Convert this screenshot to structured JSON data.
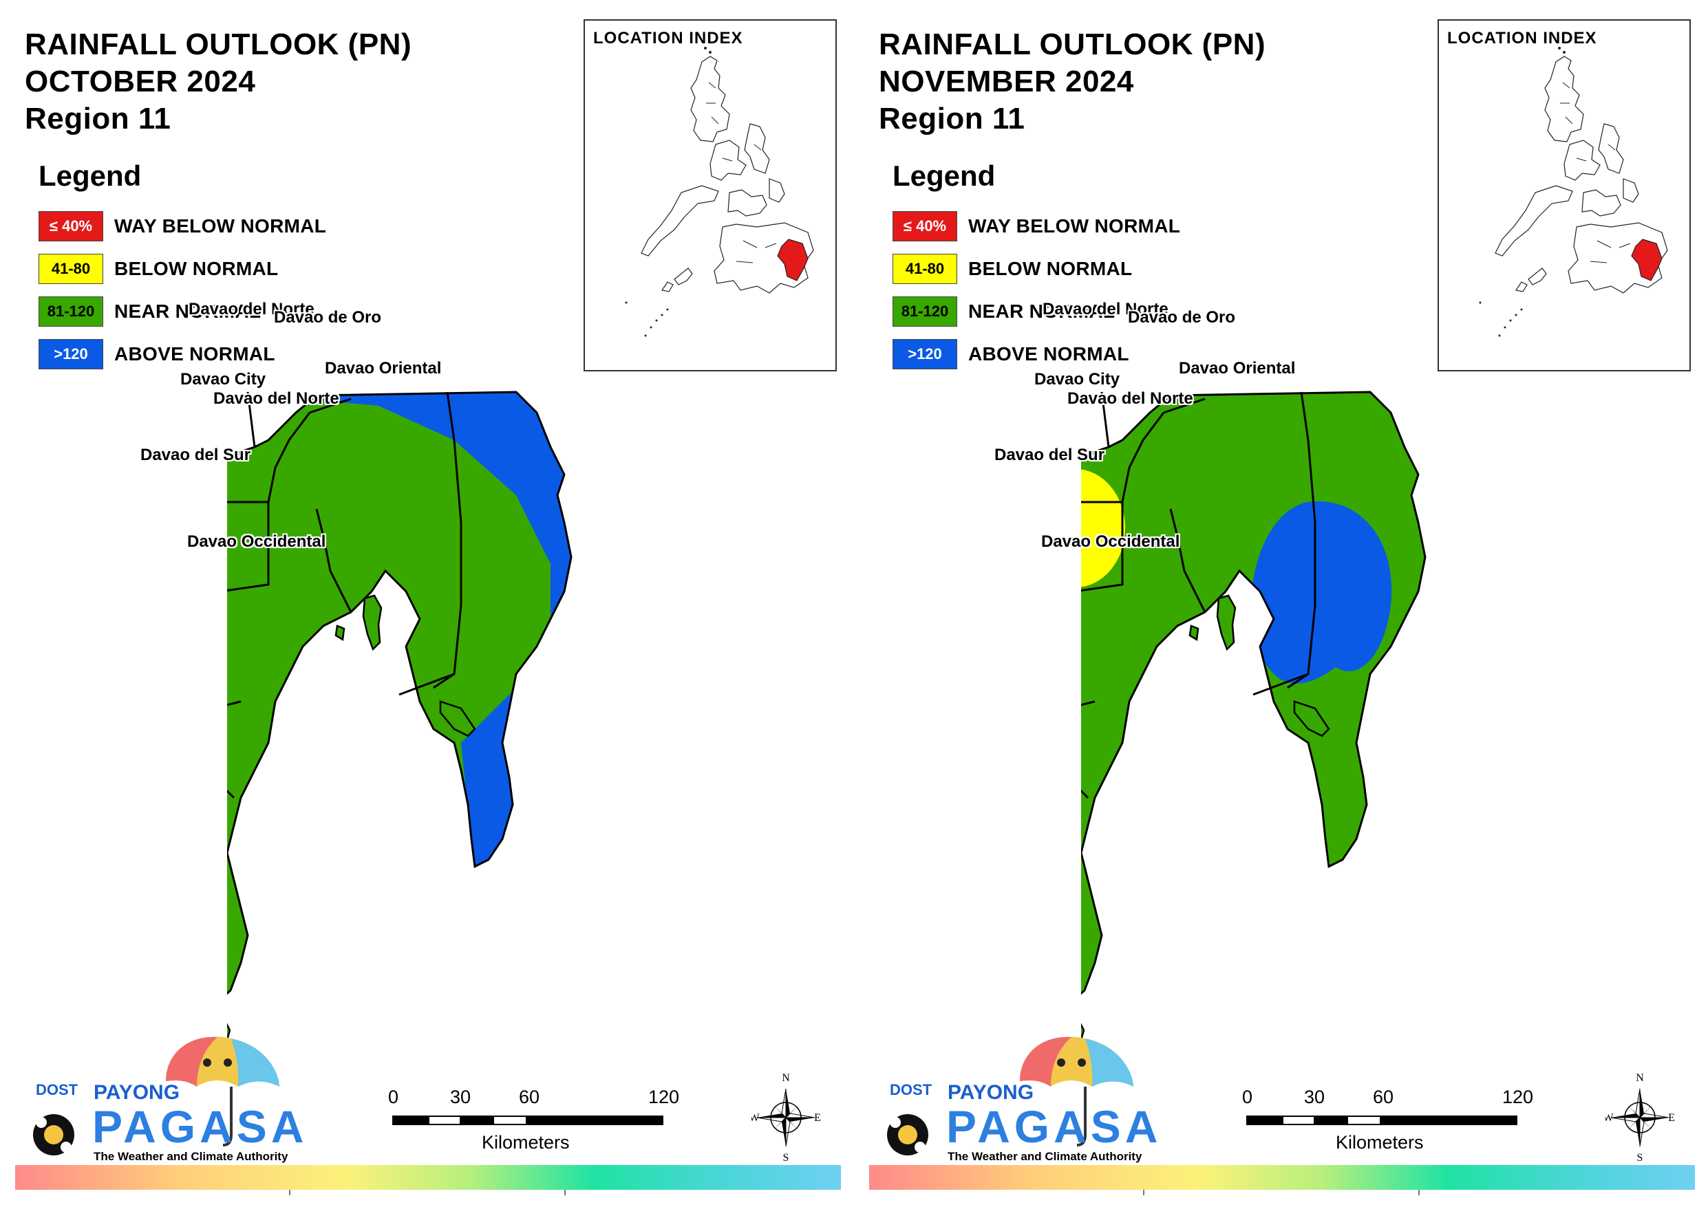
{
  "panels": [
    {
      "title": [
        "RAINFALL OUTLOOK (PN)",
        "OCTOBER 2024",
        "Region 11"
      ],
      "legend_heading": "Legend",
      "legend": [
        {
          "swatch": "≤ 40%",
          "label": "WAY BELOW NORMAL",
          "color": "#e41a1a",
          "text_color": "#ffffff"
        },
        {
          "swatch": "41-80",
          "label": "BELOW NORMAL",
          "color": "#ffff00",
          "text_color": "#000000"
        },
        {
          "swatch": "81-120",
          "label": "NEAR NORMAL",
          "color": "#38a800",
          "text_color": "#000000"
        },
        {
          "swatch": ">120",
          "label": "ABOVE NORMAL",
          "color": "#0a5ae6",
          "text_color": "#ffffff"
        }
      ],
      "location_index_title": "LOCATION INDEX",
      "map_labels": [
        "Davao del Norte",
        "Davao de Oro",
        "Davao City",
        "Davao del Norte",
        "Davao Oriental",
        "Davao del Sur",
        "Davao Occidental"
      ],
      "outlook_overlay": {
        "above_normal": "eastern coast (Davao Oriental)",
        "below_normal": "none"
      },
      "scale": {
        "ticks": [
          "0",
          "30",
          "60",
          "120"
        ],
        "unit": "Kilometers"
      },
      "compass": {
        "n": "N",
        "s": "S",
        "e": "E",
        "w": "W"
      },
      "logo": {
        "dost": "DOST",
        "payong": "PAYONG",
        "pagasa": "PAGASA",
        "tagline": "The Weather and Climate Authority"
      }
    },
    {
      "title": [
        "RAINFALL OUTLOOK (PN)",
        "NOVEMBER 2024",
        "Region 11"
      ],
      "legend_heading": "Legend",
      "legend": [
        {
          "swatch": "≤ 40%",
          "label": "WAY BELOW NORMAL",
          "color": "#e41a1a",
          "text_color": "#ffffff"
        },
        {
          "swatch": "41-80",
          "label": "BELOW NORMAL",
          "color": "#ffff00",
          "text_color": "#000000"
        },
        {
          "swatch": "81-120",
          "label": "NEAR NORMAL",
          "color": "#38a800",
          "text_color": "#000000"
        },
        {
          "swatch": ">120",
          "label": "ABOVE NORMAL",
          "color": "#0a5ae6",
          "text_color": "#ffffff"
        }
      ],
      "location_index_title": "LOCATION INDEX",
      "map_labels": [
        "Davao del Norte",
        "Davao de Oro",
        "Davao City",
        "Davao del Norte",
        "Davao Oriental",
        "Davao del Sur",
        "Davao Occidental"
      ],
      "outlook_overlay": {
        "above_normal": "central gulf area",
        "below_normal": "northwest Davao del Norte"
      },
      "scale": {
        "ticks": [
          "0",
          "30",
          "60",
          "120"
        ],
        "unit": "Kilometers"
      },
      "compass": {
        "n": "N",
        "s": "S",
        "e": "E",
        "w": "W"
      },
      "logo": {
        "dost": "DOST",
        "payong": "PAYONG",
        "pagasa": "PAGASA",
        "tagline": "The Weather and Climate Authority"
      }
    }
  ]
}
